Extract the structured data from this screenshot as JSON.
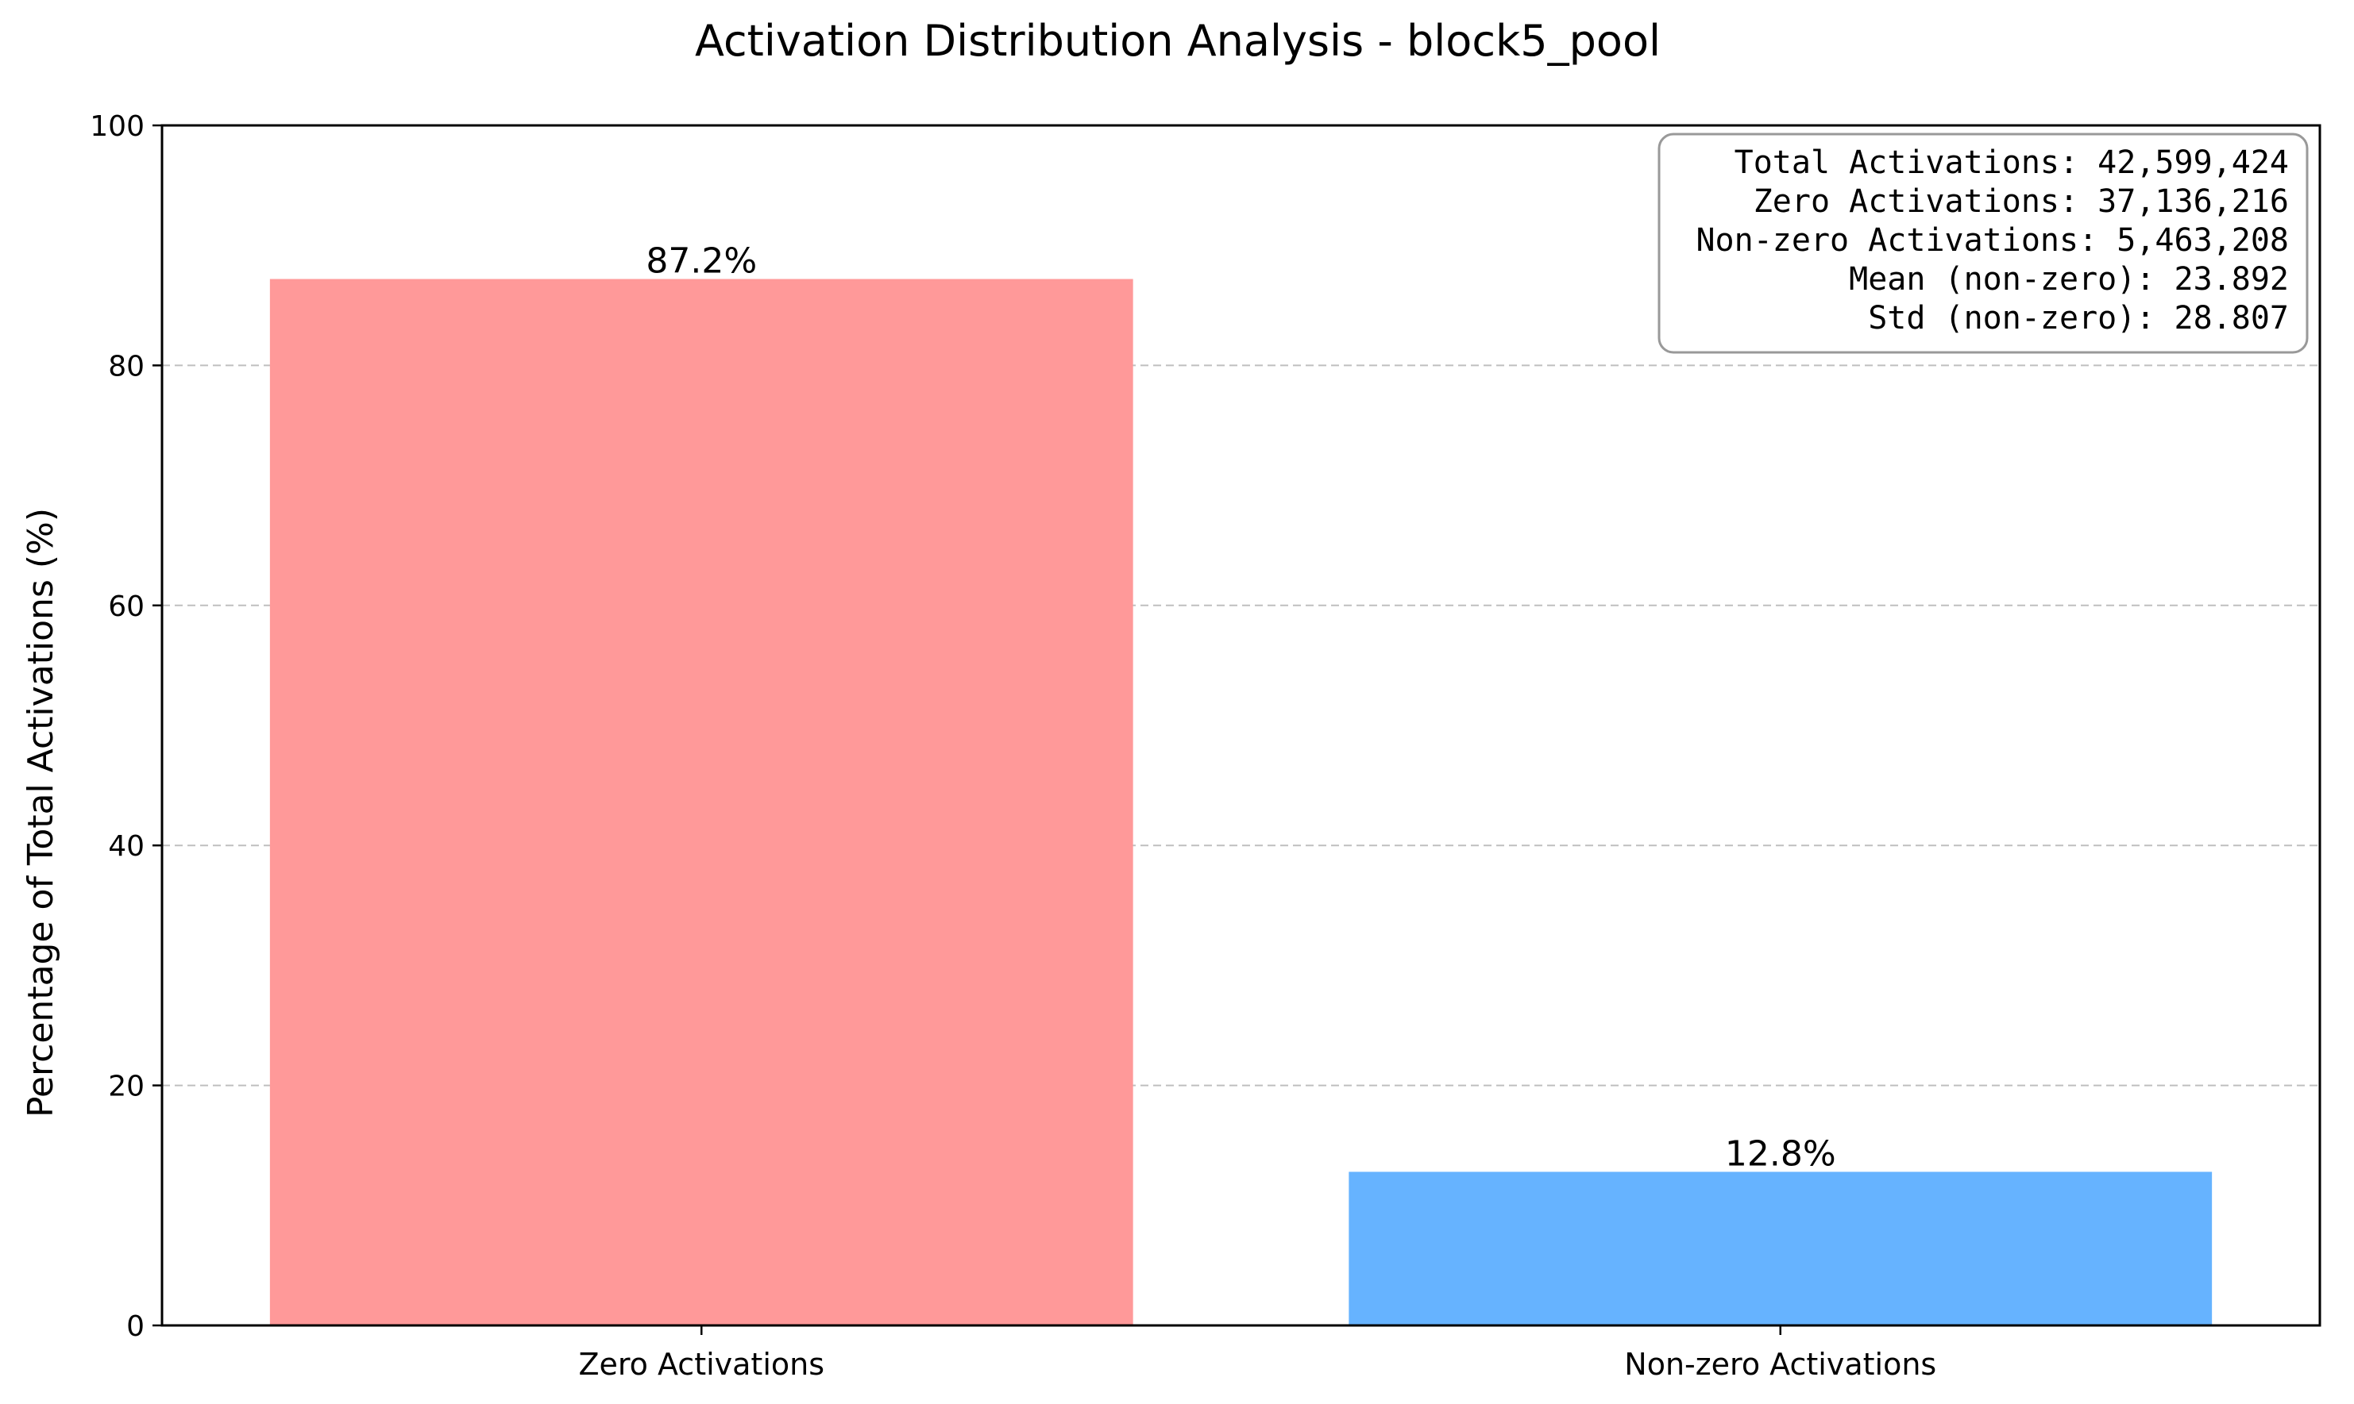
{
  "chart_data": {
    "type": "bar",
    "title": "Activation Distribution Analysis - block5_pool",
    "xlabel": "",
    "ylabel": "Percentage of Total Activations (%)",
    "ylim": [
      0,
      100
    ],
    "yticks": [
      0,
      20,
      40,
      60,
      80,
      100
    ],
    "grid": "y-dashed",
    "categories": [
      "Zero Activations",
      "Non-zero Activations"
    ],
    "values": [
      87.2,
      12.8
    ],
    "value_labels": [
      "87.2%",
      "12.8%"
    ],
    "colors": [
      "#ff9999",
      "#66b3ff"
    ],
    "stats_box": {
      "placement": "top-right",
      "lines": [
        "Total Activations: 42,599,424",
        "Zero Activations: 37,136,216",
        "Non-zero Activations: 5,463,208",
        "Mean (non-zero): 23.892",
        "Std (non-zero): 28.807"
      ]
    }
  }
}
